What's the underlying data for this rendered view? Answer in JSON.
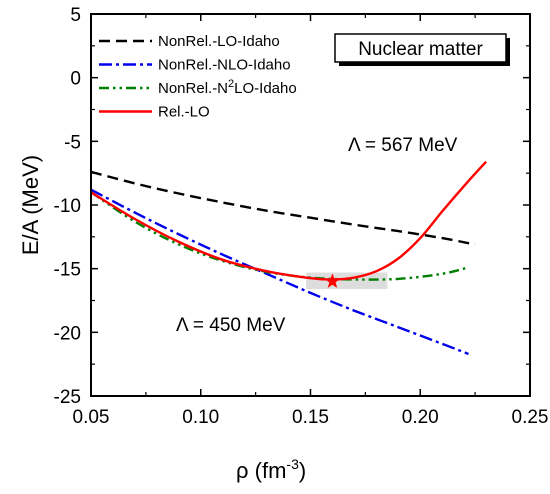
{
  "chart_data": {
    "type": "line",
    "xlabel": "ρ (fm",
    "xlabel_sup": "-3",
    "xlabel_close": ")",
    "ylabel": "E/A (MeV)",
    "xlim": [
      0.05,
      0.25
    ],
    "ylim": [
      -25,
      5
    ],
    "xticks": [
      0.05,
      0.1,
      0.15,
      0.2,
      0.25
    ],
    "xtick_labels": [
      "0.05",
      "0.10",
      "0.15",
      "0.20",
      "0.25"
    ],
    "yticks": [
      5,
      0,
      -5,
      -10,
      -15,
      -20,
      -25
    ],
    "ytick_labels": [
      "5",
      "0",
      "-5",
      "-10",
      "-15",
      "-20",
      "-25"
    ],
    "grid": false,
    "legend_position": "top-left",
    "box_label": "Nuclear matter",
    "annotations": {
      "lambda_567": "Λ = 567 MeV",
      "lambda_450": "Λ = 450 MeV"
    },
    "series": [
      {
        "name": "NonRel.-LO-Idaho",
        "legend_parts": [
          "NonRel.-LO-Idaho"
        ],
        "color": "#000000",
        "dash": "dashed",
        "x": [
          0.05,
          0.07,
          0.09,
          0.11,
          0.13,
          0.15,
          0.17,
          0.19,
          0.21,
          0.225
        ],
        "y": [
          -7.4,
          -8.3,
          -9.1,
          -9.8,
          -10.45,
          -11.0,
          -11.55,
          -12.05,
          -12.6,
          -13.1
        ]
      },
      {
        "name": "NonRel.-NLO-Idaho",
        "legend_parts": [
          "NonRel.-NLO-Idaho"
        ],
        "color": "#0000ee",
        "dash": "dashdot",
        "x": [
          0.05,
          0.07,
          0.09,
          0.11,
          0.13,
          0.15,
          0.17,
          0.19,
          0.21,
          0.222
        ],
        "y": [
          -8.8,
          -10.6,
          -12.3,
          -13.9,
          -15.4,
          -16.9,
          -18.3,
          -19.6,
          -20.9,
          -21.7
        ]
      },
      {
        "name": "NonRel.-N²LO-Idaho",
        "legend_parts": [
          "NonRel.-N",
          "2",
          "LO-Idaho"
        ],
        "color": "#008000",
        "dash": "dashdotdot",
        "x": [
          0.05,
          0.07,
          0.09,
          0.11,
          0.13,
          0.15,
          0.17,
          0.19,
          0.21,
          0.222
        ],
        "y": [
          -9.0,
          -11.3,
          -13.1,
          -14.4,
          -15.25,
          -15.7,
          -15.85,
          -15.8,
          -15.4,
          -14.9
        ]
      },
      {
        "name": "Rel.-LO",
        "legend_parts": [
          "Rel.-LO"
        ],
        "color": "#ff0000",
        "dash": "solid",
        "x": [
          0.05,
          0.07,
          0.09,
          0.11,
          0.13,
          0.15,
          0.16,
          0.17,
          0.18,
          0.19,
          0.2,
          0.21,
          0.22,
          0.23
        ],
        "y": [
          -9.0,
          -11.1,
          -12.9,
          -14.3,
          -15.2,
          -15.75,
          -15.85,
          -15.7,
          -15.2,
          -14.2,
          -12.6,
          -10.5,
          -8.5,
          -6.6
        ]
      }
    ],
    "saturation_point": {
      "x": 0.16,
      "y": -16.0,
      "color": "#ff0000"
    },
    "empirical_region": {
      "x": [
        0.148,
        0.185
      ],
      "y": [
        -16.6,
        -15.3
      ],
      "color": "#dddddd"
    }
  }
}
